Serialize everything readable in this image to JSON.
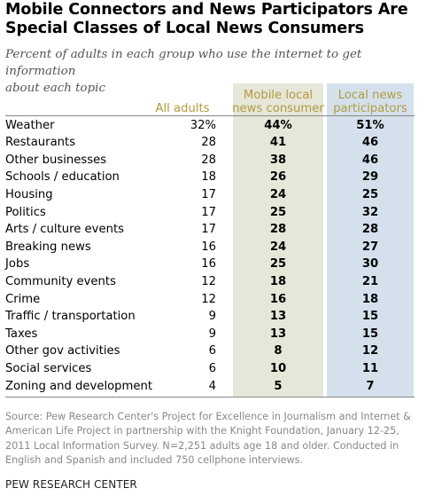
{
  "title_line1": "Mobile Connectors and News Participators Are",
  "title_line2": "Special Classes of Local News Consumers",
  "subtitle_line1": "Percent of adults in each group who use the internet to get information",
  "subtitle_line2": "about each topic",
  "colors": {
    "mobile_band": "#e6e6d9",
    "local_band": "#d4e1ec",
    "header_text": "#b19b3e"
  },
  "chart_data": {
    "type": "table",
    "title": "Mobile Connectors and News Participators Are Special Classes of Local News Consumers",
    "subtitle": "Percent of adults in each group who use the internet to get information about each topic",
    "columns": [
      {
        "line1": "All adults",
        "line2": ""
      },
      {
        "line1": "Mobile local",
        "line2": "news consumer"
      },
      {
        "line1": "Local news",
        "line2": "participators"
      }
    ],
    "rows": [
      {
        "label": "Weather",
        "all": "32%",
        "mobile": "44%",
        "local": "51%"
      },
      {
        "label": "Restaurants",
        "all": "28",
        "mobile": "41",
        "local": "46"
      },
      {
        "label": "Other businesses",
        "all": "28",
        "mobile": "38",
        "local": "46"
      },
      {
        "label": "Schools / education",
        "all": "18",
        "mobile": "26",
        "local": "29"
      },
      {
        "label": "Housing",
        "all": "17",
        "mobile": "24",
        "local": "25"
      },
      {
        "label": "Politics",
        "all": "17",
        "mobile": "25",
        "local": "32"
      },
      {
        "label": "Arts / culture events",
        "all": "17",
        "mobile": "28",
        "local": "28"
      },
      {
        "label": "Breaking news",
        "all": "16",
        "mobile": "24",
        "local": "27"
      },
      {
        "label": "Jobs",
        "all": "16",
        "mobile": "25",
        "local": "30"
      },
      {
        "label": "Community events",
        "all": "12",
        "mobile": "18",
        "local": "21"
      },
      {
        "label": "Crime",
        "all": "12",
        "mobile": "16",
        "local": "18"
      },
      {
        "label": "Traffic / transportation",
        "all": "9",
        "mobile": "13",
        "local": "15"
      },
      {
        "label": "Taxes",
        "all": "9",
        "mobile": "13",
        "local": "15"
      },
      {
        "label": "Other gov activities",
        "all": "6",
        "mobile": "8",
        "local": "12"
      },
      {
        "label": "Social services",
        "all": "6",
        "mobile": "10",
        "local": "11"
      },
      {
        "label": "Zoning and development",
        "all": "4",
        "mobile": "5",
        "local": "7"
      }
    ]
  },
  "source_lines": [
    "Source: Pew Research Center's Project for Excellence in Journalism and Internet &",
    "American Life Project in partnership with the Knight Foundation, January 12-25,",
    "2011 Local Information Survey. N=2,251 adults age 18 and older. Conducted in",
    "English and Spanish and included 750 cellphone interviews."
  ],
  "org": "PEW RESEARCH CENTER"
}
